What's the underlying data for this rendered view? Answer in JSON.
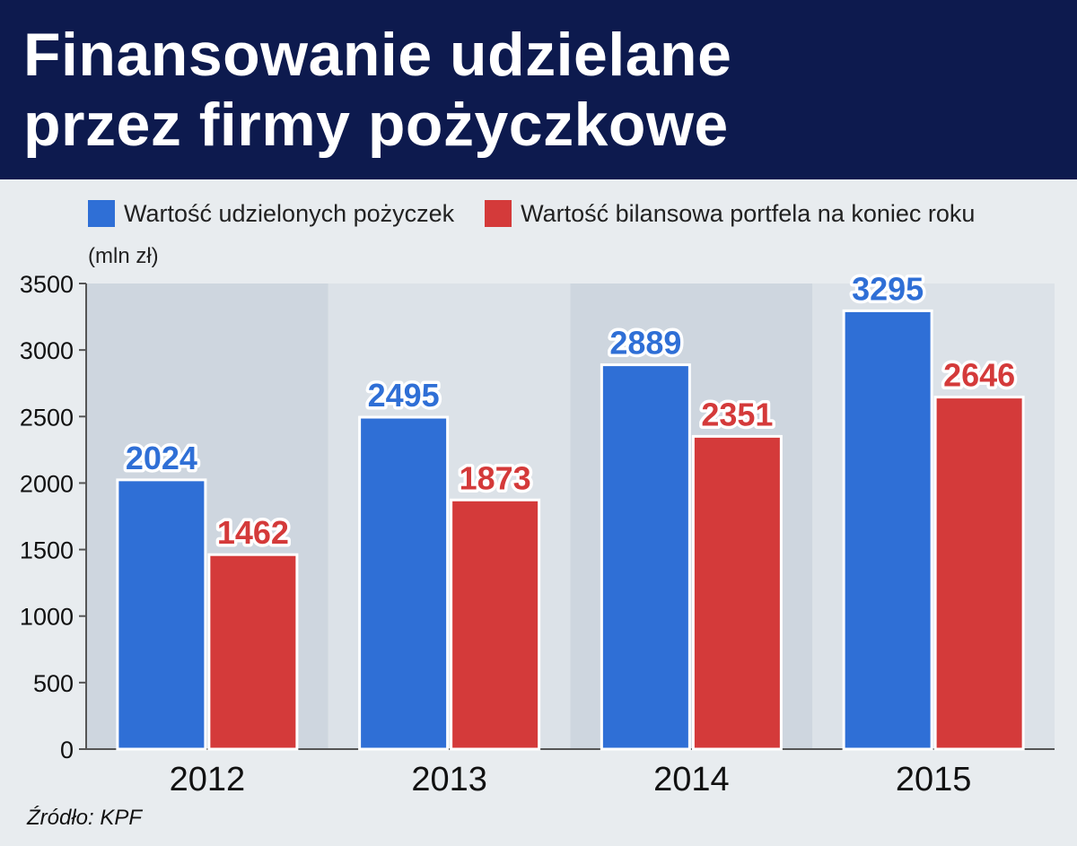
{
  "title": "Finansowanie udzielane\nprzez firmy pożyczkowe",
  "unit_label": "(mln zł)",
  "source": "Źródło: KPF",
  "colors": {
    "header_bg": "#0d1a4e",
    "series_blue": "#2f6fd6",
    "series_red": "#d43a3a"
  },
  "chart_data": {
    "type": "bar",
    "title": "Finansowanie udzielane przez firmy pożyczkowe",
    "ylabel": "(mln zł)",
    "xlabel": "",
    "categories": [
      "2012",
      "2013",
      "2014",
      "2015"
    ],
    "series": [
      {
        "name": "Wartość udzielonych pożyczek",
        "color": "#2f6fd6",
        "values": [
          2024,
          2495,
          2889,
          3295
        ]
      },
      {
        "name": "Wartość bilansowa portfela na koniec roku",
        "color": "#d43a3a",
        "values": [
          1462,
          1873,
          2351,
          2646
        ]
      }
    ],
    "ylim": [
      0,
      3500
    ],
    "yticks": [
      0,
      500,
      1000,
      1500,
      2000,
      2500,
      3000,
      3500
    ],
    "legend_position": "top",
    "grid": false,
    "data_labels": true
  }
}
